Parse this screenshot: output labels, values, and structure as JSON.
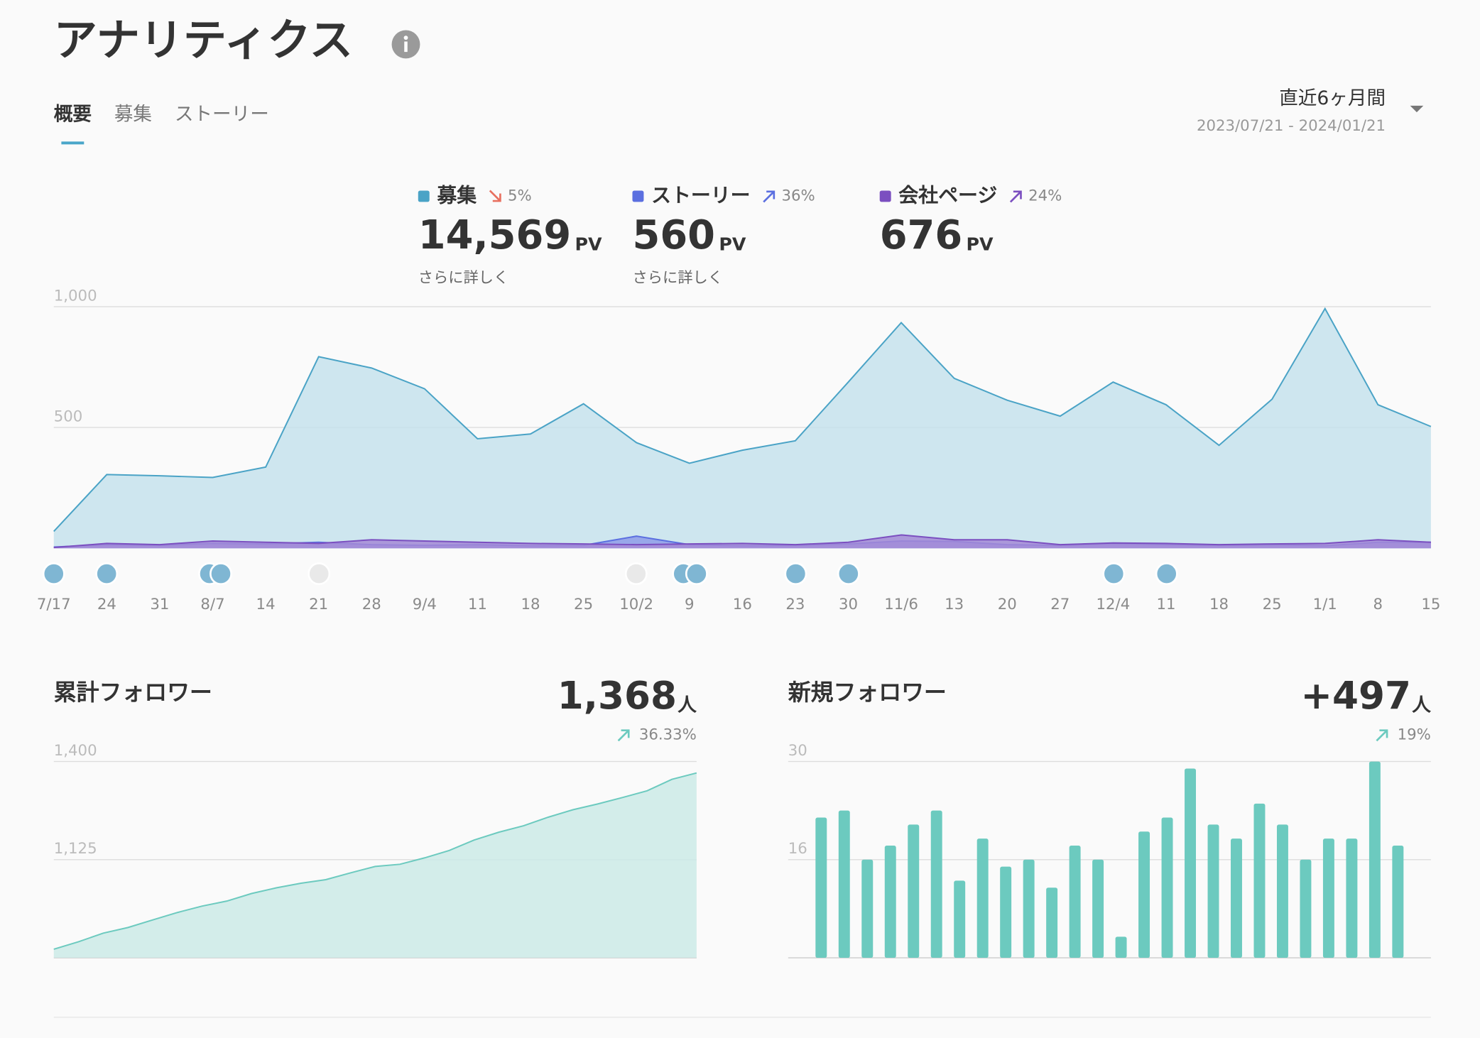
{
  "header": {
    "title": "アナリティクス"
  },
  "tabs": [
    "概要",
    "募集",
    "ストーリー"
  ],
  "active_tab": 0,
  "period": {
    "label": "直近6ヶ月間",
    "range": "2023/07/21 - 2024/01/21"
  },
  "chart_data": [
    {
      "type": "area",
      "unit": "PV",
      "categories": [
        "7/17",
        "24",
        "31",
        "8/7",
        "14",
        "21",
        "28",
        "9/4",
        "11",
        "18",
        "25",
        "10/2",
        "9",
        "16",
        "23",
        "30",
        "11/6",
        "13",
        "20",
        "27",
        "12/4",
        "11",
        "18",
        "25",
        "1/1",
        "8",
        "15"
      ],
      "series": [
        {
          "name": "募集",
          "color": "#4aa3c6",
          "fill": "#c5e2ec",
          "total": "14,569",
          "change": "5%",
          "trend": "down",
          "link": "さらに詳しく",
          "values": [
            70,
            305,
            300,
            293,
            336,
            793,
            746,
            660,
            453,
            473,
            598,
            437,
            352,
            406,
            445,
            688,
            934,
            703,
            613,
            547,
            688,
            594,
            426,
            617,
            992,
            594,
            504
          ]
        },
        {
          "name": "ストーリー",
          "color": "#5b6fe0",
          "fill": "#8e9be8",
          "total": "560",
          "change": "36%",
          "trend": "up",
          "link": "さらに詳しく",
          "values": [
            5,
            15,
            12,
            20,
            18,
            25,
            15,
            12,
            15,
            10,
            12,
            50,
            15,
            10,
            12,
            18,
            30,
            28,
            15,
            12,
            20,
            15,
            12,
            15,
            10,
            25,
            25
          ]
        },
        {
          "name": "会社ページ",
          "color": "#7b4fc0",
          "fill": "#a58ad6",
          "total": "676",
          "change": "24%",
          "trend": "up",
          "values": [
            3,
            20,
            15,
            30,
            25,
            20,
            35,
            30,
            25,
            20,
            18,
            15,
            18,
            20,
            15,
            25,
            55,
            35,
            35,
            15,
            22,
            20,
            15,
            18,
            20,
            35,
            25
          ]
        }
      ],
      "ylim": [
        0,
        1000
      ],
      "yticks": [
        {
          "value": 1000,
          "label": "1,000"
        },
        500
      ],
      "grid": true
    },
    {
      "type": "area",
      "title": "累計フォロワー",
      "total": "1,368",
      "unit": "人",
      "change": "36.33%",
      "trend": "up",
      "color": "#6ccabf",
      "fill": "#cbeae6",
      "values": [
        874,
        895,
        919,
        935,
        956,
        977,
        995,
        1009,
        1030,
        1046,
        1059,
        1069,
        1088,
        1106,
        1112,
        1130,
        1151,
        1180,
        1202,
        1220,
        1244,
        1265,
        1281,
        1299,
        1318,
        1350,
        1368
      ],
      "ylim": [
        850,
        1400
      ],
      "yticks": [
        {
          "value": 1400,
          "label": "1,400"
        },
        {
          "value": 1125,
          "label": "1,125"
        }
      ],
      "grid": true
    },
    {
      "type": "bar",
      "title": "新規フォロワー",
      "total": "+497",
      "unit": "人",
      "change": "19%",
      "trend": "up",
      "color": "#6ccabf",
      "values": [
        22,
        23,
        16,
        18,
        21,
        23,
        13,
        19,
        15,
        16,
        12,
        18,
        16,
        5,
        20,
        22,
        29,
        21,
        19,
        24,
        21,
        16,
        19,
        19,
        30,
        18
      ],
      "ylim": [
        2,
        30
      ],
      "yticks": [
        30,
        16
      ],
      "grid": true
    }
  ]
}
